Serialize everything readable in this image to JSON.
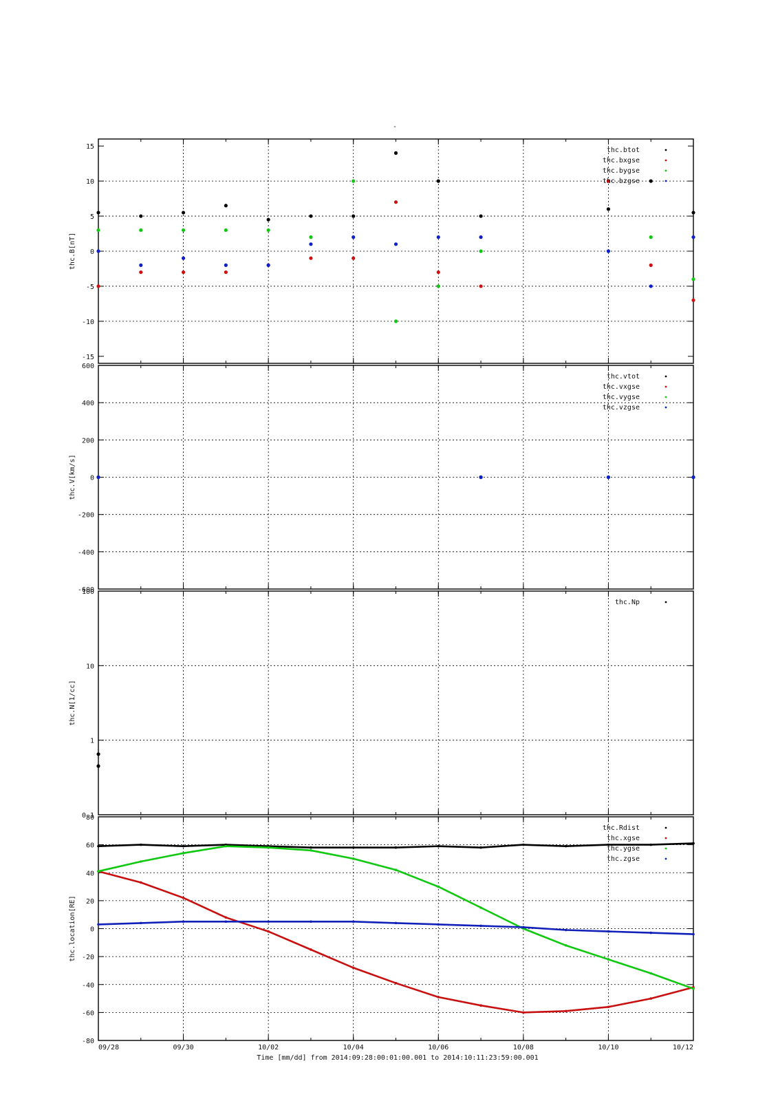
{
  "figure": {
    "title": "-",
    "xlabel": "Time [mm/dd]  from 2014:09:28:00:01:00.001  to  2014:10:11:23:59:00.001"
  },
  "chart_data": [
    {
      "type": "scatter",
      "ylabel": "thc.B[nT]",
      "ylim": [
        -16,
        16
      ],
      "yticks": [
        -15,
        -10,
        -5,
        0,
        5,
        10,
        15
      ],
      "xlim": [
        "09/28",
        "10/12"
      ],
      "xticks": [
        "09/28",
        "09/30",
        "10/02",
        "10/04",
        "10/06",
        "10/08",
        "10/10",
        "10/12"
      ],
      "grid": true,
      "legend_position": "top-right",
      "colors": [
        "#000000",
        "#d01010",
        "#10c810",
        "#1020c8"
      ],
      "series": [
        {
          "name": "thc.btot",
          "x": [
            "09/28",
            "09/29",
            "09/30",
            "10/01",
            "10/02",
            "10/03",
            "10/04",
            "10/05",
            "10/06",
            "10/07",
            "10/10",
            "10/11",
            "10/12"
          ],
          "y": [
            5.5,
            5,
            5.5,
            6.5,
            4.5,
            5,
            5,
            14,
            10,
            5,
            6,
            10,
            5.5
          ]
        },
        {
          "name": "thc.bxgse",
          "x": [
            "09/28",
            "09/29",
            "09/30",
            "10/01",
            "10/02",
            "10/03",
            "10/04",
            "10/05",
            "10/06",
            "10/07",
            "10/10",
            "10/11",
            "10/12"
          ],
          "y": [
            -5,
            -3,
            -3,
            -3,
            -2,
            -1,
            -1,
            7,
            -3,
            -5,
            10,
            -2,
            -7
          ]
        },
        {
          "name": "thc.bygse",
          "x": [
            "09/28",
            "09/29",
            "09/30",
            "10/01",
            "10/02",
            "10/03",
            "10/04",
            "10/05",
            "10/06",
            "10/07",
            "10/10",
            "10/11",
            "10/12"
          ],
          "y": [
            3,
            3,
            3,
            3,
            3,
            2,
            10,
            -10,
            -5,
            0,
            0,
            2,
            -4
          ]
        },
        {
          "name": "thc.bzgse",
          "x": [
            "09/28",
            "09/29",
            "09/30",
            "10/01",
            "10/02",
            "10/03",
            "10/04",
            "10/05",
            "10/06",
            "10/07",
            "10/10",
            "10/11",
            "10/12"
          ],
          "y": [
            0,
            -2,
            -1,
            -2,
            -2,
            1,
            2,
            1,
            2,
            2,
            0,
            -5,
            2
          ]
        }
      ]
    },
    {
      "type": "scatter",
      "ylabel": "thc.V[km/s]",
      "ylim": [
        -600,
        600
      ],
      "yticks": [
        -600,
        -400,
        -200,
        0,
        200,
        400,
        600
      ],
      "xlim": [
        "09/28",
        "10/12"
      ],
      "xticks": [
        "09/28",
        "09/30",
        "10/02",
        "10/04",
        "10/06",
        "10/08",
        "10/10",
        "10/12"
      ],
      "grid": true,
      "legend_position": "top-right",
      "colors": [
        "#000000",
        "#d01010",
        "#10c810",
        "#1020c8"
      ],
      "series": [
        {
          "name": "thc.vtot",
          "x": [
            "09/28",
            "10/07",
            "10/10",
            "10/12"
          ],
          "y": [
            0,
            0,
            0,
            0
          ]
        },
        {
          "name": "thc.vxgse",
          "x": [
            "09/28",
            "10/07",
            "10/10",
            "10/12"
          ],
          "y": [
            0,
            0,
            0,
            0
          ]
        },
        {
          "name": "thc.vygse",
          "x": [
            "09/28",
            "10/07",
            "10/10",
            "10/12"
          ],
          "y": [
            0,
            0,
            0,
            0
          ]
        },
        {
          "name": "thc.vzgse",
          "x": [
            "09/28",
            "10/07",
            "10/10",
            "10/12"
          ],
          "y": [
            0,
            0,
            0,
            0
          ]
        }
      ]
    },
    {
      "type": "scatter",
      "ylabel": "thc.N[1/cc]",
      "yscale": "log",
      "ylim": [
        0.1,
        100
      ],
      "yticks": [
        "0.1",
        "1",
        "10",
        "100"
      ],
      "xlim": [
        "09/28",
        "10/12"
      ],
      "xticks": [
        "09/28",
        "09/30",
        "10/02",
        "10/04",
        "10/06",
        "10/08",
        "10/10",
        "10/12"
      ],
      "grid": true,
      "legend_position": "top-right",
      "colors": [
        "#000000"
      ],
      "series": [
        {
          "name": "thc.Np",
          "x": [
            "09/28",
            "09/28"
          ],
          "y": [
            0.65,
            0.45
          ]
        }
      ]
    },
    {
      "type": "line",
      "ylabel": "thc.location[RE]",
      "ylim": [
        -80,
        80
      ],
      "yticks": [
        -80,
        -60,
        -40,
        -20,
        0,
        20,
        40,
        60,
        80
      ],
      "xlim": [
        "09/28",
        "10/12"
      ],
      "xticks": [
        "09/28",
        "09/30",
        "10/02",
        "10/04",
        "10/06",
        "10/08",
        "10/10",
        "10/12"
      ],
      "grid": true,
      "legend_position": "top-right",
      "colors": [
        "#000000",
        "#c81010",
        "#10c810",
        "#1020b8"
      ],
      "series": [
        {
          "name": "thc.Rdist",
          "x": [
            "09/28",
            "09/29",
            "09/30",
            "10/01",
            "10/02",
            "10/03",
            "10/04",
            "10/05",
            "10/06",
            "10/07",
            "10/08",
            "10/09",
            "10/10",
            "10/11",
            "10/12"
          ],
          "y": [
            59,
            60,
            59,
            60,
            59,
            58,
            58,
            58,
            59,
            58,
            60,
            59,
            60,
            60,
            61
          ]
        },
        {
          "name": "thc.xgse",
          "x": [
            "09/28",
            "09/29",
            "09/30",
            "10/01",
            "10/02",
            "10/03",
            "10/04",
            "10/05",
            "10/06",
            "10/07",
            "10/08",
            "10/09",
            "10/10",
            "10/11",
            "10/12"
          ],
          "y": [
            41,
            33,
            22,
            8,
            -2,
            -15,
            -28,
            -39,
            -49,
            -55,
            -60,
            -59,
            -56,
            -50,
            -42
          ]
        },
        {
          "name": "thc.ygse",
          "x": [
            "09/28",
            "09/29",
            "09/30",
            "10/01",
            "10/02",
            "10/03",
            "10/04",
            "10/05",
            "10/06",
            "10/07",
            "10/08",
            "10/09",
            "10/10",
            "10/11",
            "10/12"
          ],
          "y": [
            41,
            48,
            54,
            59,
            58,
            56,
            50,
            42,
            30,
            15,
            0,
            -12,
            -22,
            -32,
            -43
          ]
        },
        {
          "name": "thc.zgse",
          "x": [
            "09/28",
            "09/29",
            "09/30",
            "10/01",
            "10/02",
            "10/03",
            "10/04",
            "10/05",
            "10/06",
            "10/07",
            "10/08",
            "10/09",
            "10/10",
            "10/11",
            "10/12"
          ],
          "y": [
            3,
            4,
            5,
            5,
            5,
            5,
            5,
            4,
            3,
            2,
            1,
            -1,
            -2,
            -3,
            -4
          ]
        }
      ]
    }
  ]
}
